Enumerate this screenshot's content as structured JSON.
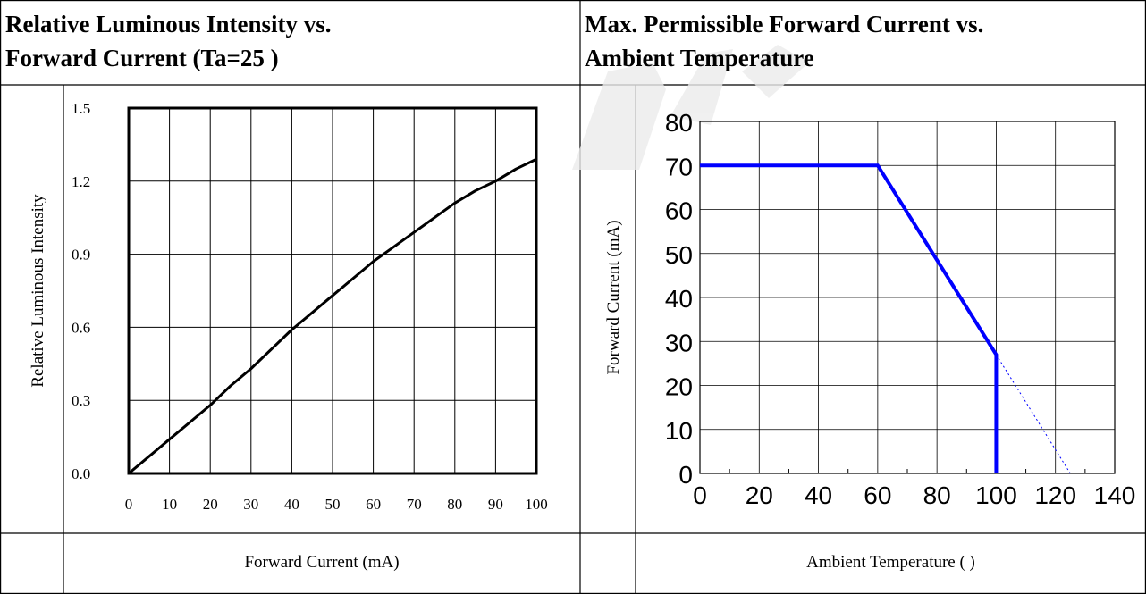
{
  "left_panel": {
    "title_line1": "Relative Luminous Intensity vs.",
    "title_line2": "Forward Current (Ta=25    )",
    "footer_label": "Forward Current (mA)"
  },
  "right_panel": {
    "title_line1": "Max. Permissible Forward Current vs.",
    "title_line2": "Ambient Temperature",
    "footer_label": "Ambient Temperature (    )"
  },
  "chart_data": [
    {
      "type": "line",
      "title": "",
      "xlabel": "",
      "ylabel": "Relative Luminous Intensity",
      "xlim": [
        0,
        100
      ],
      "ylim": [
        0,
        1.5
      ],
      "x_ticks": [
        "0",
        "10",
        "20",
        "30",
        "40",
        "50",
        "60",
        "70",
        "80",
        "90",
        "100"
      ],
      "y_ticks": [
        "0.0",
        "0.3",
        "0.6",
        "0.9",
        "1.2",
        "1.5"
      ],
      "grid": true,
      "series": [
        {
          "x": [
            0,
            5,
            10,
            15,
            20,
            25,
            30,
            35,
            40,
            45,
            50,
            55,
            60,
            65,
            70,
            75,
            80,
            85,
            90,
            95,
            100
          ],
          "y": [
            0.0,
            0.07,
            0.14,
            0.21,
            0.28,
            0.36,
            0.43,
            0.51,
            0.59,
            0.66,
            0.73,
            0.8,
            0.87,
            0.93,
            0.99,
            1.05,
            1.11,
            1.16,
            1.2,
            1.25,
            1.29
          ]
        }
      ]
    },
    {
      "type": "line",
      "title": "",
      "xlabel": "",
      "ylabel": "Forward Current (mA)",
      "xlim": [
        0,
        140
      ],
      "ylim": [
        0,
        80
      ],
      "x_ticks": [
        "0",
        "20",
        "40",
        "60",
        "80",
        "100",
        "120",
        "140"
      ],
      "y_ticks": [
        "0",
        "10",
        "20",
        "30",
        "40",
        "50",
        "60",
        "70",
        "80"
      ],
      "grid": true,
      "line_color": "#0000ff",
      "series": [
        {
          "style": "solid",
          "x": [
            0,
            60,
            100,
            100
          ],
          "y": [
            70,
            70,
            27,
            0
          ]
        },
        {
          "style": "dotted",
          "x": [
            100,
            125
          ],
          "y": [
            27,
            0
          ]
        }
      ]
    }
  ]
}
